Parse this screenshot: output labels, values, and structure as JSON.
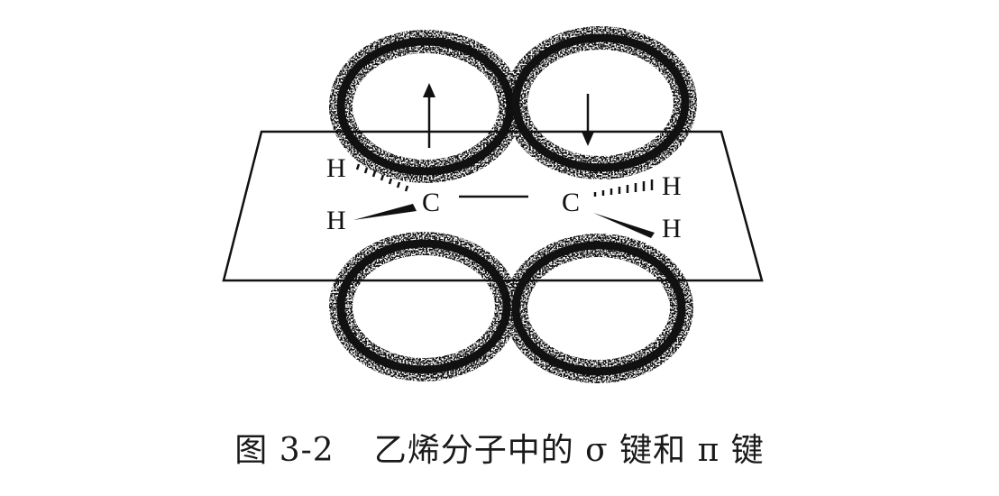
{
  "figure": {
    "atoms": {
      "carbon_left": "C",
      "carbon_right": "C",
      "h_upper_left": "H",
      "h_lower_left": "H",
      "h_upper_right": "H",
      "h_lower_right": "H"
    },
    "electron_spins": {
      "left_lobe": "up",
      "right_lobe": "down"
    },
    "colors": {
      "ink": "#111111",
      "background": "#ffffff"
    }
  },
  "caption": {
    "number": "图 3-2",
    "text": "乙烯分子中的 σ 键和 π 键"
  }
}
